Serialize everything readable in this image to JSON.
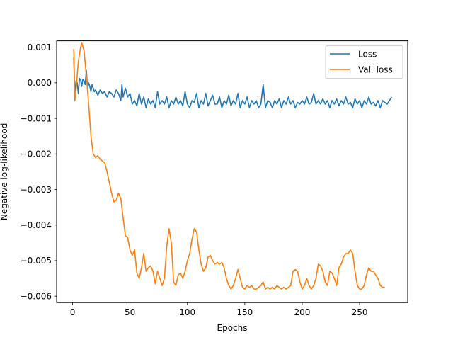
{
  "chart_data": {
    "type": "line",
    "title": "",
    "xlabel": "Epochs",
    "ylabel": "Negative log-likelihood",
    "xlim": [
      -13.9,
      291.9
    ],
    "ylim": [
      -0.00618,
      0.00118
    ],
    "xticks": [
      0,
      50,
      100,
      150,
      200,
      250
    ],
    "xtick_labels": [
      "0",
      "50",
      "100",
      "150",
      "200",
      "250"
    ],
    "yticks": [
      -0.006,
      -0.005,
      -0.004,
      -0.003,
      -0.002,
      -0.001,
      0.0,
      0.001
    ],
    "ytick_labels": [
      "−0.006",
      "−0.005",
      "−0.004",
      "−0.003",
      "−0.002",
      "−0.001",
      "0.000",
      "0.001"
    ],
    "grid": false,
    "legend": {
      "position": "top-right"
    },
    "series": [
      {
        "name": "Loss",
        "color": "#1f77b4",
        "points": [
          [
            1,
            0.00072
          ],
          [
            2,
            -0.0004
          ],
          [
            3,
            5e-05
          ],
          [
            4,
            0.0
          ],
          [
            5,
            -0.0003
          ],
          [
            6,
            0.00012
          ],
          [
            7,
            8e-05
          ],
          [
            8,
            -0.0001
          ],
          [
            9,
            0.0001
          ],
          [
            10,
            5e-05
          ],
          [
            11,
            -5e-05
          ],
          [
            12,
            0.00035
          ],
          [
            13,
            -0.00015
          ],
          [
            14,
            0.0
          ],
          [
            15,
            -0.0001
          ],
          [
            16,
            -0.00025
          ],
          [
            17,
            -5e-05
          ],
          [
            18,
            -0.00015
          ],
          [
            19,
            -0.00025
          ],
          [
            20,
            -0.0002
          ],
          [
            22,
            -0.00035
          ],
          [
            24,
            -0.0002
          ],
          [
            26,
            -0.0003
          ],
          [
            28,
            -0.00025
          ],
          [
            30,
            -0.0004
          ],
          [
            32,
            -0.00025
          ],
          [
            34,
            -0.0003
          ],
          [
            36,
            -0.0004
          ],
          [
            38,
            -0.0002
          ],
          [
            40,
            -0.0003
          ],
          [
            42,
            -0.0005
          ],
          [
            43,
            -5e-05
          ],
          [
            44,
            -0.0004
          ],
          [
            46,
            -0.00015
          ],
          [
            48,
            -0.0004
          ],
          [
            50,
            -0.0003
          ],
          [
            52,
            -0.0006
          ],
          [
            54,
            -0.0005
          ],
          [
            56,
            -0.00065
          ],
          [
            58,
            -0.0003
          ],
          [
            60,
            -0.0006
          ],
          [
            62,
            -0.0004
          ],
          [
            64,
            -0.0007
          ],
          [
            66,
            -0.00045
          ],
          [
            68,
            -0.0006
          ],
          [
            70,
            -0.0005
          ],
          [
            72,
            -0.0007
          ],
          [
            74,
            -0.00025
          ],
          [
            76,
            -0.0006
          ],
          [
            78,
            -0.0005
          ],
          [
            80,
            -0.0006
          ],
          [
            82,
            -0.0004
          ],
          [
            84,
            -0.0007
          ],
          [
            86,
            -0.0005
          ],
          [
            88,
            -0.0006
          ],
          [
            90,
            -0.0004
          ],
          [
            92,
            -0.0006
          ],
          [
            94,
            -0.0005
          ],
          [
            96,
            -0.00065
          ],
          [
            98,
            -0.00025
          ],
          [
            100,
            -0.0006
          ],
          [
            102,
            -0.0007
          ],
          [
            104,
            -0.0005
          ],
          [
            106,
            -0.00055
          ],
          [
            108,
            -0.0003
          ],
          [
            110,
            -0.0007
          ],
          [
            112,
            -0.0005
          ],
          [
            114,
            -0.0006
          ],
          [
            116,
            -0.0003
          ],
          [
            118,
            -0.00065
          ],
          [
            120,
            -0.0005
          ],
          [
            122,
            -0.00035
          ],
          [
            124,
            -0.0006
          ],
          [
            126,
            -0.0006
          ],
          [
            128,
            -0.0004
          ],
          [
            130,
            -0.0007
          ],
          [
            132,
            -0.0005
          ],
          [
            134,
            -0.0006
          ],
          [
            136,
            -0.00035
          ],
          [
            138,
            -0.00065
          ],
          [
            140,
            -0.0005
          ],
          [
            142,
            -0.0006
          ],
          [
            144,
            -0.0003
          ],
          [
            146,
            -0.0007
          ],
          [
            148,
            -0.0005
          ],
          [
            150,
            -0.0006
          ],
          [
            152,
            -0.0004
          ],
          [
            154,
            -0.0007
          ],
          [
            156,
            -0.0005
          ],
          [
            158,
            -0.0006
          ],
          [
            160,
            -0.0005
          ],
          [
            162,
            -0.0007
          ],
          [
            164,
            -0.0006
          ],
          [
            166,
            -5e-05
          ],
          [
            168,
            -0.0007
          ],
          [
            170,
            -0.0005
          ],
          [
            172,
            -0.00055
          ],
          [
            174,
            -0.0007
          ],
          [
            176,
            -0.0005
          ],
          [
            178,
            -0.0006
          ],
          [
            180,
            -0.00045
          ],
          [
            182,
            -0.0007
          ],
          [
            184,
            -0.0005
          ],
          [
            186,
            -0.0006
          ],
          [
            188,
            -0.0004
          ],
          [
            190,
            -0.0006
          ],
          [
            192,
            -0.0005
          ],
          [
            194,
            -0.0007
          ],
          [
            196,
            -0.00055
          ],
          [
            198,
            -0.0006
          ],
          [
            200,
            -0.0005
          ],
          [
            202,
            -0.0006
          ],
          [
            204,
            -0.0004
          ],
          [
            206,
            -0.0006
          ],
          [
            208,
            -0.00055
          ],
          [
            210,
            -0.0003
          ],
          [
            212,
            -0.0006
          ],
          [
            214,
            -0.0005
          ],
          [
            216,
            -0.0006
          ],
          [
            218,
            -0.00045
          ],
          [
            220,
            -0.0006
          ],
          [
            222,
            -0.0005
          ],
          [
            224,
            -0.0007
          ],
          [
            226,
            -0.0005
          ],
          [
            228,
            -0.0006
          ],
          [
            230,
            -0.00045
          ],
          [
            232,
            -0.00065
          ],
          [
            234,
            -0.0005
          ],
          [
            236,
            -0.0006
          ],
          [
            238,
            -0.0004
          ],
          [
            240,
            -0.0006
          ],
          [
            242,
            -0.00055
          ],
          [
            244,
            -0.0007
          ],
          [
            246,
            -0.00045
          ],
          [
            248,
            -0.0006
          ],
          [
            250,
            -0.0005
          ],
          [
            252,
            -0.0007
          ],
          [
            254,
            -0.0005
          ],
          [
            256,
            -0.0006
          ],
          [
            258,
            -0.0004
          ],
          [
            260,
            -0.0006
          ],
          [
            262,
            -0.00055
          ],
          [
            264,
            -0.00065
          ],
          [
            266,
            -0.0005
          ],
          [
            268,
            -0.0007
          ],
          [
            270,
            -0.0005
          ],
          [
            272,
            -0.00055
          ],
          [
            274,
            -0.0006
          ],
          [
            276,
            -0.0005
          ],
          [
            278,
            -0.0004
          ]
        ]
      },
      {
        "name": "Val. loss",
        "color": "#ff7f0e",
        "points": [
          [
            1,
            0.00095
          ],
          [
            2,
            -0.0005
          ],
          [
            3,
            -0.0002
          ],
          [
            5,
            0.0006
          ],
          [
            7,
            0.001
          ],
          [
            8,
            0.00112
          ],
          [
            10,
            0.0009
          ],
          [
            12,
            0.0002
          ],
          [
            14,
            -0.0006
          ],
          [
            16,
            -0.0015
          ],
          [
            18,
            -0.002
          ],
          [
            20,
            -0.0021
          ],
          [
            22,
            -0.00205
          ],
          [
            24,
            -0.00215
          ],
          [
            26,
            -0.0022
          ],
          [
            28,
            -0.00225
          ],
          [
            30,
            -0.0025
          ],
          [
            32,
            -0.0028
          ],
          [
            34,
            -0.0031
          ],
          [
            36,
            -0.00335
          ],
          [
            38,
            -0.0033
          ],
          [
            40,
            -0.0031
          ],
          [
            42,
            -0.00325
          ],
          [
            44,
            -0.0038
          ],
          [
            46,
            -0.0043
          ],
          [
            48,
            -0.00435
          ],
          [
            50,
            -0.0047
          ],
          [
            52,
            -0.00485
          ],
          [
            54,
            -0.0047
          ],
          [
            56,
            -0.00535
          ],
          [
            58,
            -0.0055
          ],
          [
            60,
            -0.0052
          ],
          [
            62,
            -0.0048
          ],
          [
            64,
            -0.0053
          ],
          [
            66,
            -0.0052
          ],
          [
            68,
            -0.00515
          ],
          [
            70,
            -0.0053
          ],
          [
            72,
            -0.00565
          ],
          [
            74,
            -0.0053
          ],
          [
            76,
            -0.0055
          ],
          [
            78,
            -0.0057
          ],
          [
            80,
            -0.0055
          ],
          [
            82,
            -0.0046
          ],
          [
            84,
            -0.0041
          ],
          [
            86,
            -0.0045
          ],
          [
            88,
            -0.0056
          ],
          [
            90,
            -0.0057
          ],
          [
            92,
            -0.0054
          ],
          [
            94,
            -0.00535
          ],
          [
            96,
            -0.0055
          ],
          [
            98,
            -0.0053
          ],
          [
            100,
            -0.005
          ],
          [
            102,
            -0.0048
          ],
          [
            104,
            -0.0044
          ],
          [
            106,
            -0.0041
          ],
          [
            108,
            -0.0042
          ],
          [
            110,
            -0.0047
          ],
          [
            112,
            -0.0051
          ],
          [
            114,
            -0.0053
          ],
          [
            116,
            -0.0052
          ],
          [
            118,
            -0.0049
          ],
          [
            120,
            -0.00485
          ],
          [
            122,
            -0.005
          ],
          [
            124,
            -0.0051
          ],
          [
            126,
            -0.00505
          ],
          [
            128,
            -0.0051
          ],
          [
            130,
            -0.00505
          ],
          [
            132,
            -0.0052
          ],
          [
            134,
            -0.0055
          ],
          [
            136,
            -0.0057
          ],
          [
            138,
            -0.0058
          ],
          [
            140,
            -0.0057
          ],
          [
            142,
            -0.0055
          ],
          [
            144,
            -0.00525
          ],
          [
            146,
            -0.0055
          ],
          [
            148,
            -0.00575
          ],
          [
            150,
            -0.0058
          ],
          [
            152,
            -0.0057
          ],
          [
            154,
            -0.00575
          ],
          [
            156,
            -0.0057
          ],
          [
            158,
            -0.0058
          ],
          [
            160,
            -0.0058
          ],
          [
            162,
            -0.00575
          ],
          [
            164,
            -0.0057
          ],
          [
            166,
            -0.0056
          ],
          [
            168,
            -0.0058
          ],
          [
            170,
            -0.00575
          ],
          [
            172,
            -0.0058
          ],
          [
            174,
            -0.00575
          ],
          [
            176,
            -0.0058
          ],
          [
            178,
            -0.0057
          ],
          [
            180,
            -0.00575
          ],
          [
            182,
            -0.0058
          ],
          [
            184,
            -0.00575
          ],
          [
            186,
            -0.0058
          ],
          [
            188,
            -0.00575
          ],
          [
            190,
            -0.0057
          ],
          [
            192,
            -0.0053
          ],
          [
            194,
            -0.00525
          ],
          [
            196,
            -0.0053
          ],
          [
            198,
            -0.0056
          ],
          [
            200,
            -0.0058
          ],
          [
            202,
            -0.0057
          ],
          [
            204,
            -0.0055
          ],
          [
            206,
            -0.0057
          ],
          [
            208,
            -0.0058
          ],
          [
            210,
            -0.0057
          ],
          [
            212,
            -0.0055
          ],
          [
            214,
            -0.0051
          ],
          [
            216,
            -0.00515
          ],
          [
            218,
            -0.0053
          ],
          [
            220,
            -0.0056
          ],
          [
            222,
            -0.0057
          ],
          [
            224,
            -0.0053
          ],
          [
            226,
            -0.00535
          ],
          [
            228,
            -0.0055
          ],
          [
            230,
            -0.0057
          ],
          [
            232,
            -0.0052
          ],
          [
            234,
            -0.0051
          ],
          [
            236,
            -0.0049
          ],
          [
            238,
            -0.0048
          ],
          [
            240,
            -0.0048
          ],
          [
            242,
            -0.0047
          ],
          [
            244,
            -0.0048
          ],
          [
            246,
            -0.0053
          ],
          [
            248,
            -0.0057
          ],
          [
            250,
            -0.0058
          ],
          [
            252,
            -0.0058
          ],
          [
            254,
            -0.0057
          ],
          [
            256,
            -0.0054
          ],
          [
            258,
            -0.0052
          ],
          [
            260,
            -0.0053
          ],
          [
            262,
            -0.0053
          ],
          [
            264,
            -0.0054
          ],
          [
            266,
            -0.0055
          ],
          [
            268,
            -0.0057
          ],
          [
            270,
            -0.00575
          ],
          [
            272,
            -0.00575
          ]
        ]
      }
    ]
  }
}
